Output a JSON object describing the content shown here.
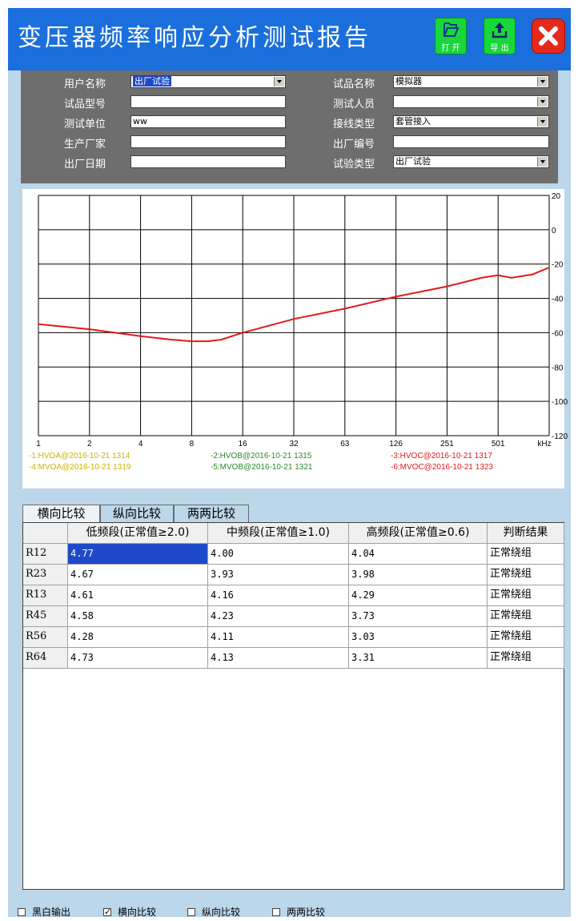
{
  "window": {
    "title": "变压器频率响应分析测试报告",
    "open_label": "打 开",
    "export_label": "导 出",
    "open_icon": "folder-open-icon",
    "export_icon": "upload-icon",
    "close_icon": "close-icon",
    "colors": {
      "titlebar": "#1b6fdc",
      "button_green": "#19d63a",
      "close_red": "#e32a1d"
    }
  },
  "form": {
    "user_name_label": "用户名称",
    "user_name_value": "出厂试验",
    "sample_model_label": "试品型号",
    "sample_model_value": "",
    "test_unit_label": "测试单位",
    "test_unit_value": "ww",
    "manufacturer_label": "生产厂家",
    "manufacturer_value": "",
    "factory_date_label": "出厂日期",
    "factory_date_value": "",
    "sample_name_label": "试品名称",
    "sample_name_value": "模拟器",
    "tester_label": "测试人员",
    "tester_value": "",
    "wiring_type_label": "接线类型",
    "wiring_type_value": "套管接入",
    "serial_no_label": "出厂编号",
    "serial_no_value": "",
    "test_type_label": "试验类型",
    "test_type_value": "出厂试验"
  },
  "chart_data": {
    "type": "line",
    "x_scale": "log",
    "x_ticks": [
      "1",
      "2",
      "4",
      "8",
      "16",
      "32",
      "63",
      "126",
      "251",
      "501",
      "kHz"
    ],
    "x_tick_values": [
      1,
      2,
      4,
      8,
      16,
      32,
      63,
      126,
      251,
      501
    ],
    "y_ticks": [
      "20",
      "0",
      "-20",
      "-40",
      "-60",
      "-80",
      "-100",
      "-120"
    ],
    "ylim": [
      -120,
      20
    ],
    "xlim": [
      1,
      1000
    ],
    "grid": true,
    "legend_position": "bottom",
    "legend": [
      {
        "text": "-1:HVOA@2016-10-21 1314",
        "color": "#c8b400"
      },
      {
        "text": "-2:HVOB@2016-10-21 1315",
        "color": "#2a8a2a"
      },
      {
        "text": "-3:HVOC@2016-10-21 1317",
        "color": "#e01a1a"
      },
      {
        "text": "-4:MVOA@2016-10-21 1319",
        "color": "#c8b400"
      },
      {
        "text": "-5:MVOB@2016-10-21 1321",
        "color": "#2a8a2a"
      },
      {
        "text": "-6:MVOC@2016-10-21 1323",
        "color": "#e01a1a"
      }
    ],
    "series": [
      {
        "color": "#e01a1a",
        "x": [
          1,
          2,
          4,
          6,
          8,
          10,
          12,
          16,
          32,
          63,
          126,
          251,
          400,
          501,
          600,
          800,
          1000
        ],
        "values": [
          -55,
          -58,
          -62,
          -64,
          -65,
          -65,
          -64,
          -60,
          -52,
          -46,
          -39,
          -33,
          -28,
          -26.5,
          -28,
          -26,
          -22
        ]
      }
    ]
  },
  "tabs": [
    "横向比较",
    "纵向比较",
    "两两比较"
  ],
  "table": {
    "headers": [
      "",
      "低频段(正常值≥2.0)",
      "中频段(正常值≥1.0)",
      "高频段(正常值≥0.6)",
      "判断结果"
    ],
    "rows": [
      [
        "R12",
        "4.77",
        "4.00",
        "4.04",
        "正常绕组"
      ],
      [
        "R23",
        "4.67",
        "3.93",
        "3.98",
        "正常绕组"
      ],
      [
        "R13",
        "4.61",
        "4.16",
        "4.29",
        "正常绕组"
      ],
      [
        "R45",
        "4.58",
        "4.23",
        "3.73",
        "正常绕组"
      ],
      [
        "R56",
        "4.28",
        "4.11",
        "3.03",
        "正常绕组"
      ],
      [
        "R64",
        "4.73",
        "4.13",
        "3.31",
        "正常绕组"
      ]
    ]
  },
  "bottom": {
    "bw_output": {
      "label": "黑白输出",
      "checked": false
    },
    "horizontal": {
      "label": "横向比较",
      "checked": true
    },
    "vertical": {
      "label": "纵向比较",
      "checked": false
    },
    "pairwise": {
      "label": "两两比较",
      "checked": false
    }
  }
}
